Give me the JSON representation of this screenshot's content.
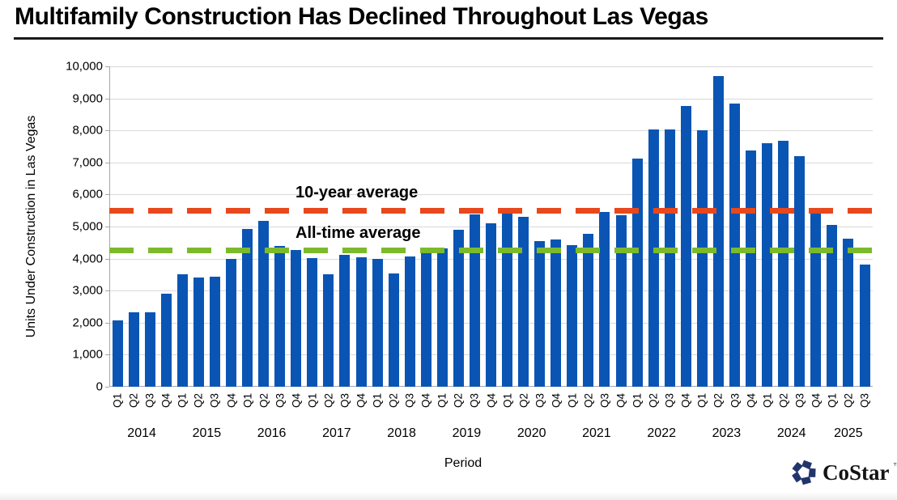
{
  "logo": {
    "text": "CoStar",
    "tm": "™",
    "color": "#22356B"
  },
  "chart_data": {
    "type": "bar",
    "title": "Multifamily Construction Has Declined Throughout Las Vegas",
    "xlabel": "Period",
    "ylabel": "Units Under Construction in Las Vegas",
    "ylim": [
      0,
      10000
    ],
    "ytick_step": 1000,
    "ytick_labels": [
      "0",
      "1,000",
      "2,000",
      "3,000",
      "4,000",
      "5,000",
      "6,000",
      "7,000",
      "8,000",
      "9,000",
      "10,000"
    ],
    "grid": true,
    "bar_color": "#0A55B4",
    "grid_color": "#d9d9d9",
    "categories": [
      "Q1",
      "Q2",
      "Q3",
      "Q4",
      "Q1",
      "Q2",
      "Q3",
      "Q4",
      "Q1",
      "Q2",
      "Q3",
      "Q4",
      "Q1",
      "Q2",
      "Q3",
      "Q4",
      "Q1",
      "Q2",
      "Q3",
      "Q4",
      "Q1",
      "Q2",
      "Q3",
      "Q4",
      "Q1",
      "Q2",
      "Q3",
      "Q4",
      "Q1",
      "Q2",
      "Q3",
      "Q4",
      "Q1",
      "Q2",
      "Q3",
      "Q4",
      "Q1",
      "Q2",
      "Q3",
      "Q4",
      "Q1",
      "Q2",
      "Q3",
      "Q4",
      "Q1",
      "Q2",
      "Q3"
    ],
    "years": [
      "2014",
      "2015",
      "2016",
      "2017",
      "2018",
      "2019",
      "2020",
      "2021",
      "2022",
      "2023",
      "2024",
      "2025"
    ],
    "values": [
      2080,
      2330,
      2330,
      2900,
      3510,
      3420,
      3430,
      4000,
      4930,
      5170,
      4390,
      4270,
      4010,
      3520,
      4130,
      4030,
      4000,
      3530,
      4070,
      4170,
      4330,
      4890,
      5380,
      5100,
      5400,
      5310,
      4550,
      4600,
      4430,
      4770,
      5450,
      5350,
      7120,
      8030,
      8030,
      8770,
      8010,
      9690,
      8830,
      7370,
      7590,
      7680,
      7200,
      5520,
      5060,
      4610,
      3820
    ],
    "reference_lines": [
      {
        "label": "10-year average",
        "value": 5500,
        "color": "#E8481C"
      },
      {
        "label": "All-time average",
        "value": 4250,
        "color": "#7CBA2B"
      }
    ],
    "legend_position": "none"
  }
}
